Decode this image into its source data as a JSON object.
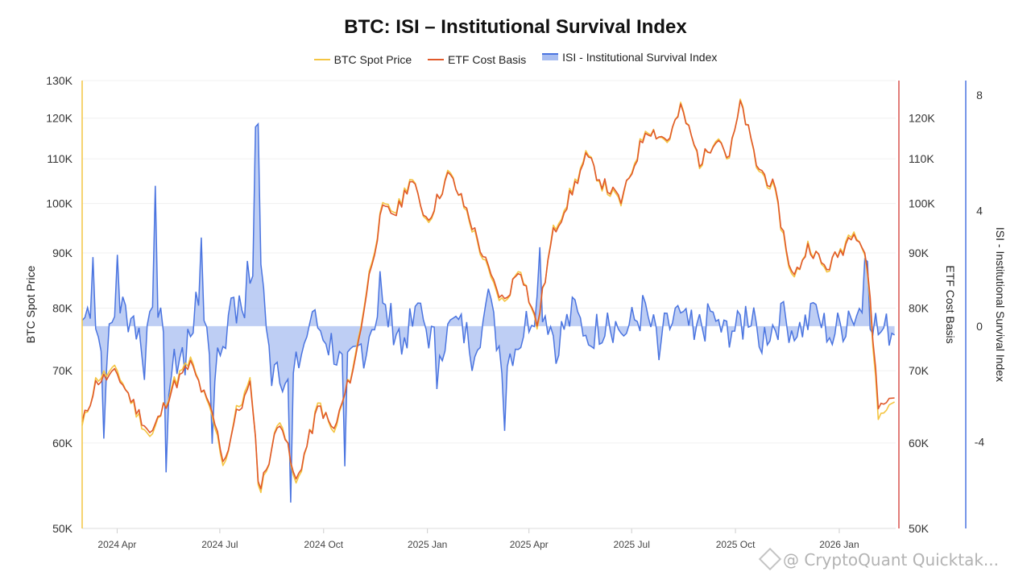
{
  "chart_data": {
    "type": "line",
    "title": "BTC: ISI – Institutional Survival Index",
    "legend": {
      "placement": "top-center",
      "items": [
        {
          "name": "BTC Spot Price",
          "color": "#f4c542",
          "kind": "line"
        },
        {
          "name": "ETF Cost Basis",
          "color": "#e0592a",
          "kind": "line"
        },
        {
          "name": "ISI - Institutional Survival Index",
          "color": "#4a74e0",
          "kind": "area"
        }
      ]
    },
    "x_axis": {
      "ticks": [
        "2024 Apr",
        "2024 Jul",
        "2024 Oct",
        "2025 Jan",
        "2025 Apr",
        "2025 Jul",
        "2025 Oct",
        "2026 Jan"
      ],
      "start": "2024-03-01",
      "end": "2026-02-20"
    },
    "y_left": {
      "label": "BTC Spot Price",
      "scale": "log",
      "range": [
        50000,
        130000
      ],
      "ticks": [
        50000,
        60000,
        70000,
        80000,
        90000,
        100000,
        110000,
        120000,
        130000
      ],
      "tick_labels": [
        "50K",
        "60K",
        "70K",
        "80K",
        "90K",
        "100K",
        "110K",
        "120K",
        "130K"
      ],
      "color": "#f4c542"
    },
    "y_right1": {
      "label": "ETF Cost Basis",
      "scale": "log",
      "range": [
        50000,
        130000
      ],
      "ticks": [
        50000,
        60000,
        70000,
        80000,
        90000,
        100000,
        110000,
        120000
      ],
      "tick_labels": [
        "50K",
        "60K",
        "70K",
        "80K",
        "90K",
        "100K",
        "110K",
        "120K"
      ],
      "color": "#d9534f"
    },
    "y_right2": {
      "label": "ISI - Institutional Survival Index",
      "range": [
        -7,
        8.5
      ],
      "ticks": [
        8,
        4,
        0,
        -4
      ],
      "tick_labels": [
        "8",
        "4",
        "0",
        "-4"
      ],
      "color": "#4a74e0"
    },
    "series": [
      {
        "name": "BTC Spot Price",
        "x": [
          "2024-03-01",
          "2024-03-14",
          "2024-04-01",
          "2024-04-20",
          "2024-05-01",
          "2024-05-20",
          "2024-06-05",
          "2024-06-25",
          "2024-07-05",
          "2024-07-15",
          "2024-07-29",
          "2024-08-05",
          "2024-08-24",
          "2024-09-06",
          "2024-09-27",
          "2024-10-10",
          "2024-10-29",
          "2024-11-12",
          "2024-11-22",
          "2024-12-05",
          "2024-12-17",
          "2025-01-01",
          "2025-01-20",
          "2025-02-05",
          "2025-02-28",
          "2025-03-10",
          "2025-03-24",
          "2025-04-08",
          "2025-04-22",
          "2025-05-10",
          "2025-05-22",
          "2025-06-05",
          "2025-06-22",
          "2025-07-03",
          "2025-07-14",
          "2025-08-02",
          "2025-08-14",
          "2025-08-31",
          "2025-09-15",
          "2025-09-25",
          "2025-10-06",
          "2025-10-20",
          "2025-11-04",
          "2025-11-21",
          "2025-12-05",
          "2025-12-20",
          "2026-01-05",
          "2026-01-14",
          "2026-01-25",
          "2026-02-05",
          "2026-02-20"
        ],
        "values": [
          62000,
          69000,
          70000,
          63500,
          60500,
          68000,
          71500,
          63000,
          57000,
          64000,
          68500,
          53500,
          64000,
          54500,
          65500,
          61000,
          72000,
          88000,
          99000,
          98500,
          106000,
          96000,
          107000,
          98000,
          84000,
          80500,
          88000,
          76500,
          94000,
          103500,
          111000,
          104000,
          100000,
          109000,
          118000,
          114000,
          123000,
          108500,
          116500,
          109500,
          124500,
          108000,
          103000,
          84500,
          92000,
          86500,
          91500,
          95500,
          89000,
          63000,
          66500
        ]
      },
      {
        "name": "ETF Cost Basis",
        "x": [
          "2024-03-01",
          "2024-03-14",
          "2024-04-01",
          "2024-04-20",
          "2024-05-01",
          "2024-05-20",
          "2024-06-05",
          "2024-06-25",
          "2024-07-05",
          "2024-07-15",
          "2024-07-29",
          "2024-08-05",
          "2024-08-24",
          "2024-09-06",
          "2024-09-27",
          "2024-10-10",
          "2024-10-29",
          "2024-11-12",
          "2024-11-22",
          "2024-12-05",
          "2024-12-17",
          "2025-01-01",
          "2025-01-20",
          "2025-02-05",
          "2025-02-28",
          "2025-03-10",
          "2025-03-24",
          "2025-04-08",
          "2025-04-22",
          "2025-05-10",
          "2025-05-22",
          "2025-06-05",
          "2025-06-22",
          "2025-07-03",
          "2025-07-14",
          "2025-08-02",
          "2025-08-14",
          "2025-08-31",
          "2025-09-15",
          "2025-09-25",
          "2025-10-06",
          "2025-10-20",
          "2025-11-04",
          "2025-11-21",
          "2025-12-05",
          "2025-12-20",
          "2026-01-05",
          "2026-01-14",
          "2026-01-25",
          "2026-02-05",
          "2026-02-20"
        ],
        "values": [
          62500,
          68500,
          69500,
          64000,
          61000,
          67500,
          71000,
          63500,
          57500,
          63500,
          68000,
          54000,
          63500,
          55000,
          65000,
          61500,
          71500,
          87500,
          98500,
          98000,
          105500,
          96500,
          106500,
          98500,
          84500,
          81000,
          87500,
          77000,
          93500,
          103000,
          110500,
          104500,
          100500,
          108500,
          117500,
          114500,
          122500,
          109000,
          116000,
          110000,
          124000,
          108500,
          103500,
          85000,
          91500,
          87000,
          91000,
          95000,
          89500,
          64500,
          67000
        ]
      },
      {
        "name": "ISI - Institutional Survival Index",
        "x": [
          "2024-03-01",
          "2024-03-10",
          "2024-03-20",
          "2024-04-01",
          "2024-04-15",
          "2024-04-25",
          "2024-05-05",
          "2024-05-15",
          "2024-06-01",
          "2024-06-15",
          "2024-06-25",
          "2024-07-10",
          "2024-07-25",
          "2024-08-03",
          "2024-08-15",
          "2024-09-01",
          "2024-09-20",
          "2024-10-05",
          "2024-10-20",
          "2024-11-05",
          "2024-11-20",
          "2024-12-10",
          "2024-12-25",
          "2025-01-10",
          "2025-01-25",
          "2025-02-10",
          "2025-02-25",
          "2025-03-10",
          "2025-03-25",
          "2025-04-10",
          "2025-04-25",
          "2025-05-10",
          "2025-05-25",
          "2025-06-10",
          "2025-06-25",
          "2025-07-10",
          "2025-07-25",
          "2025-08-10",
          "2025-08-25",
          "2025-09-10",
          "2025-09-25",
          "2025-10-10",
          "2025-10-25",
          "2025-11-10",
          "2025-11-25",
          "2025-12-10",
          "2025-12-25",
          "2026-01-10",
          "2026-01-25",
          "2026-02-05",
          "2026-02-20"
        ],
        "values": [
          0.2,
          2.8,
          -4,
          2.5,
          0.5,
          -2,
          5,
          -5.7,
          -1.5,
          3.2,
          -4.7,
          0.9,
          2,
          7.8,
          -1.8,
          -6.4,
          0.6,
          -0.9,
          -4.9,
          -1.6,
          1.9,
          -1.1,
          1,
          -2.3,
          0.5,
          -1.6,
          1.5,
          -3.7,
          -0.7,
          2.9,
          -1.3,
          1.1,
          -0.8,
          0.5,
          -0.4,
          1.2,
          -1.2,
          0.8,
          -0.5,
          0.6,
          -0.8,
          0.7,
          -1,
          0.8,
          -0.4,
          0.9,
          -0.7,
          0.6,
          2.5,
          -0.4,
          -0.3
        ]
      }
    ]
  },
  "watermark": {
    "text": "@ CryptoQuant Quicktak..."
  }
}
